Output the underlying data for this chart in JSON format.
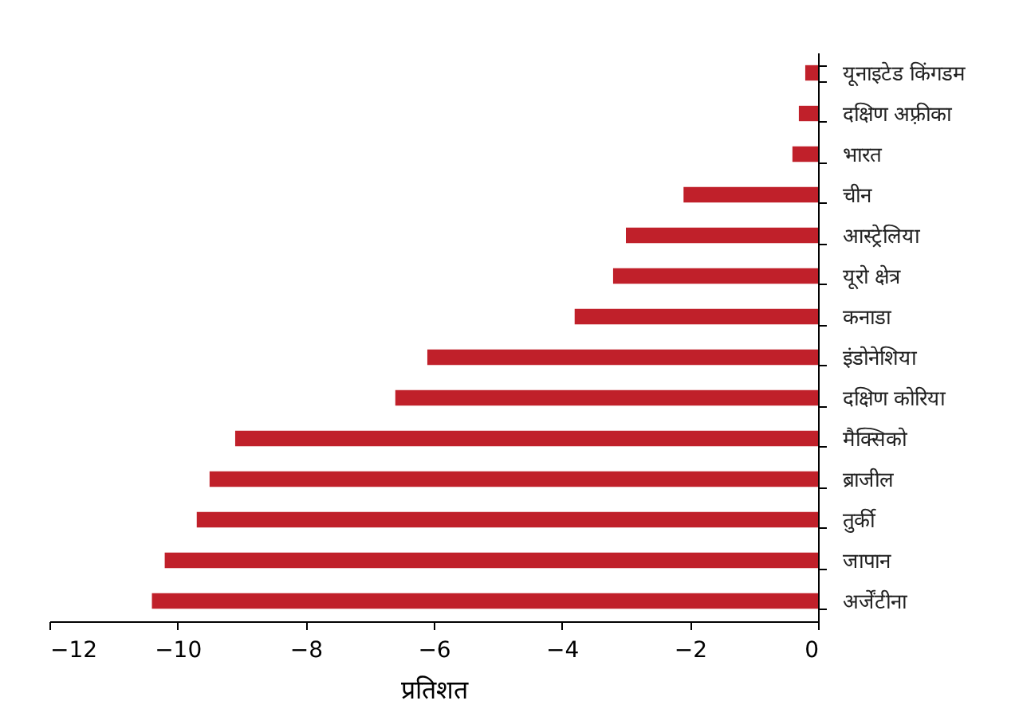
{
  "chart_data": {
    "type": "bar",
    "orientation": "horizontal",
    "xlabel": "प्रतिशत",
    "categories": [
      "यूनाइटेड किंगडम",
      "दक्षिण अफ़्रीका",
      "भारत",
      "चीन",
      "आस्ट्रेलिया",
      "यूरो क्षेत्र",
      "कनाडा",
      "इंडोनेशिया",
      "दक्षिण कोरिया",
      "मैक्सिको",
      "ब्राजील",
      "तुर्की",
      "जापान",
      "अर्जेंटीना"
    ],
    "values": [
      -0.2,
      -0.3,
      -0.4,
      -2.1,
      -3.0,
      -3.2,
      -3.8,
      -6.1,
      -6.6,
      -9.1,
      -9.5,
      -9.7,
      -10.2,
      -10.4
    ],
    "color": "#c0202a",
    "xlim": [
      -12,
      0
    ],
    "xticks": [
      -12,
      -10,
      -8,
      -6,
      -4,
      -2,
      0
    ]
  }
}
